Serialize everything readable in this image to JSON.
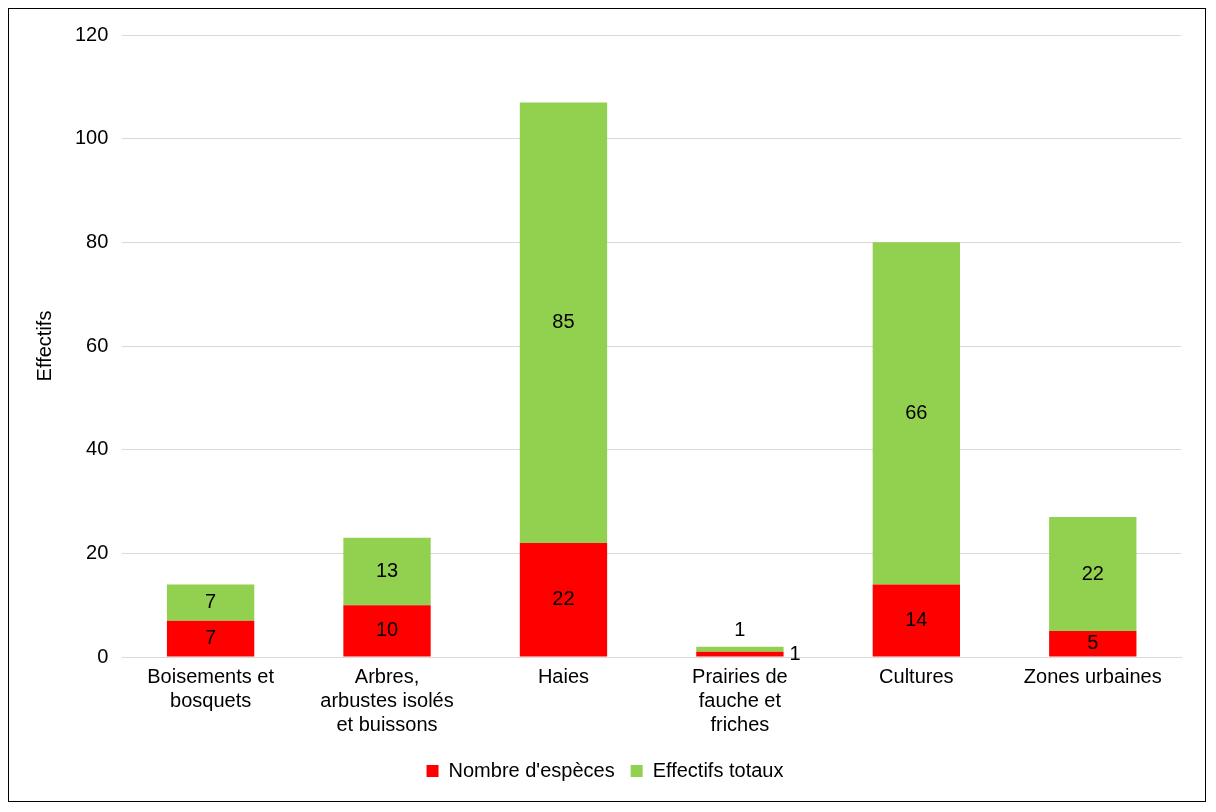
{
  "chart_data": {
    "type": "bar",
    "ylabel": "Effectifs",
    "categories": [
      "Boisements et bosquets",
      "Arbres, arbustes isolés et buissons",
      "Haies",
      "Prairies de fauche et friches",
      "Cultures",
      "Zones urbaines"
    ],
    "series": [
      {
        "name": "Nombre d'espèces",
        "color": "#ff0000",
        "values": [
          7,
          10,
          22,
          1,
          14,
          5
        ]
      },
      {
        "name": "Effectifs totaux",
        "color": "#92d050",
        "values": [
          7,
          13,
          85,
          1,
          66,
          22
        ]
      }
    ],
    "stacked": true,
    "ylim": [
      0,
      120
    ],
    "yticks": [
      0,
      20,
      40,
      60,
      80,
      100,
      120
    ],
    "grid": "y",
    "legend": "bottom",
    "data_labels": true
  }
}
